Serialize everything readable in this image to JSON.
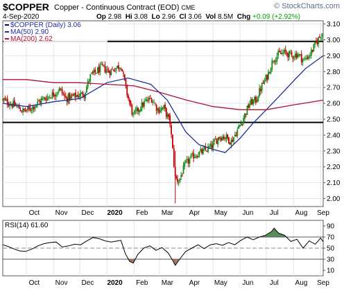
{
  "header": {
    "symbol": "$COPPER",
    "name": "Copper - Continuous Contract (EOD)",
    "exchange": "CME",
    "date": "4-Sep-2020",
    "open_label": "Op",
    "open": "2.98",
    "high_label": "Hi",
    "high": "3.08",
    "low_label": "Lo",
    "low": "2.96",
    "close_label": "Cl",
    "close": "3.06",
    "volume_label": "Vol",
    "volume": "8.5M",
    "change_label": "Chg",
    "change": "+0.09 (+2.92%)",
    "watermark": "© StockCharts.com",
    "change_color": "#00a000"
  },
  "chart_data": [
    {
      "type": "line",
      "title": "$COPPER (Daily) 3.06",
      "legend": [
        {
          "label": "$COPPER (Daily) 3.06",
          "color": "#000080"
        },
        {
          "label": "MA(50) 2.90",
          "color": "#1f2f9a"
        },
        {
          "label": "MA(200) 2.62",
          "color": "#b01030"
        }
      ],
      "legend_placement": "top-left",
      "price_axis": {
        "side": "right",
        "ylim": [
          1.95,
          3.12
        ],
        "ticks": [
          "3.10",
          "3.00",
          "2.90",
          "2.80",
          "2.70",
          "2.60",
          "2.50",
          "2.40",
          "2.30",
          "2.20",
          "2.10",
          "2.00"
        ]
      },
      "grid": true,
      "x_tick_labels": [
        "Oct",
        "Nov",
        "Dec",
        "2020",
        "Feb",
        "Mar",
        "Apr",
        "May",
        "Jun",
        "Jul",
        "Aug",
        "Sep"
      ],
      "horizontal_lines": [
        2.99,
        2.48
      ],
      "series": [
        {
          "name": "$COPPER (Daily) 3.06",
          "style": "candles",
          "up_color": "#1a8a1a",
          "down_color": "#c00000",
          "close_points": [
            [
              "2019-09-04",
              2.62
            ],
            [
              "2019-09-12",
              2.6
            ],
            [
              "2019-09-20",
              2.58
            ],
            [
              "2019-09-27",
              2.55
            ],
            [
              "2019-10-04",
              2.56
            ],
            [
              "2019-10-11",
              2.59
            ],
            [
              "2019-10-18",
              2.62
            ],
            [
              "2019-10-25",
              2.64
            ],
            [
              "2019-11-01",
              2.66
            ],
            [
              "2019-11-08",
              2.69
            ],
            [
              "2019-11-15",
              2.63
            ],
            [
              "2019-11-22",
              2.64
            ],
            [
              "2019-11-29",
              2.65
            ],
            [
              "2019-12-06",
              2.66
            ],
            [
              "2019-12-13",
              2.77
            ],
            [
              "2019-12-20",
              2.8
            ],
            [
              "2019-12-27",
              2.83
            ],
            [
              "2020-01-03",
              2.8
            ],
            [
              "2020-01-10",
              2.82
            ],
            [
              "2020-01-17",
              2.84
            ],
            [
              "2020-01-24",
              2.66
            ],
            [
              "2020-01-31",
              2.52
            ],
            [
              "2020-02-07",
              2.57
            ],
            [
              "2020-02-14",
              2.61
            ],
            [
              "2020-02-21",
              2.63
            ],
            [
              "2020-02-28",
              2.56
            ],
            [
              "2020-03-06",
              2.57
            ],
            [
              "2020-03-13",
              2.48
            ],
            [
              "2020-03-19",
              2.13
            ],
            [
              "2020-03-23",
              2.11
            ],
            [
              "2020-03-31",
              2.22
            ],
            [
              "2020-04-09",
              2.27
            ],
            [
              "2020-04-17",
              2.29
            ],
            [
              "2020-04-24",
              2.31
            ],
            [
              "2020-04-30",
              2.33
            ],
            [
              "2020-05-08",
              2.39
            ],
            [
              "2020-05-15",
              2.39
            ],
            [
              "2020-05-22",
              2.36
            ],
            [
              "2020-05-29",
              2.43
            ],
            [
              "2020-06-05",
              2.51
            ],
            [
              "2020-06-12",
              2.6
            ],
            [
              "2020-06-19",
              2.62
            ],
            [
              "2020-06-26",
              2.71
            ],
            [
              "2020-07-02",
              2.77
            ],
            [
              "2020-07-09",
              2.88
            ],
            [
              "2020-07-16",
              2.91
            ],
            [
              "2020-07-23",
              2.92
            ],
            [
              "2020-07-30",
              2.9
            ],
            [
              "2020-08-06",
              2.91
            ],
            [
              "2020-08-13",
              2.87
            ],
            [
              "2020-08-20",
              2.91
            ],
            [
              "2020-08-27",
              2.98
            ],
            [
              "2020-09-04",
              3.06
            ]
          ]
        },
        {
          "name": "MA(50) 2.90",
          "style": "line",
          "color": "#1f2f9a",
          "points": [
            [
              "2019-09-04",
              2.6
            ],
            [
              "2019-10-01",
              2.58
            ],
            [
              "2019-11-01",
              2.61
            ],
            [
              "2019-12-01",
              2.63
            ],
            [
              "2020-01-01",
              2.73
            ],
            [
              "2020-01-25",
              2.76
            ],
            [
              "2020-02-20",
              2.72
            ],
            [
              "2020-03-10",
              2.62
            ],
            [
              "2020-03-31",
              2.42
            ],
            [
              "2020-04-15",
              2.34
            ],
            [
              "2020-05-01",
              2.31
            ],
            [
              "2020-05-15",
              2.29
            ],
            [
              "2020-06-01",
              2.38
            ],
            [
              "2020-06-15",
              2.47
            ],
            [
              "2020-07-01",
              2.56
            ],
            [
              "2020-07-15",
              2.64
            ],
            [
              "2020-08-01",
              2.74
            ],
            [
              "2020-08-15",
              2.82
            ],
            [
              "2020-09-04",
              2.9
            ]
          ]
        },
        {
          "name": "MA(200) 2.62",
          "style": "line",
          "color": "#b01030",
          "points": [
            [
              "2019-09-04",
              2.75
            ],
            [
              "2019-10-01",
              2.75
            ],
            [
              "2019-11-01",
              2.73
            ],
            [
              "2019-12-01",
              2.73
            ],
            [
              "2020-01-01",
              2.72
            ],
            [
              "2020-02-01",
              2.71
            ],
            [
              "2020-03-01",
              2.67
            ],
            [
              "2020-04-01",
              2.62
            ],
            [
              "2020-05-01",
              2.58
            ],
            [
              "2020-06-01",
              2.56
            ],
            [
              "2020-07-01",
              2.56
            ],
            [
              "2020-08-01",
              2.59
            ],
            [
              "2020-09-04",
              2.62
            ]
          ]
        }
      ]
    },
    {
      "type": "line",
      "title": "RSI(14) 61.60",
      "legend": [
        {
          "label": "RSI(14) 61.60",
          "color": "#000000"
        }
      ],
      "ylim": [
        0,
        100
      ],
      "ticks": [
        "90",
        "70",
        "50",
        "30",
        "10"
      ],
      "reference_lines": [
        70,
        50,
        30
      ],
      "overbought_fill_color": "#3c7a3c",
      "oversold_fill_color": "#a05a50",
      "x_tick_labels": [
        "Oct",
        "Nov",
        "Dec",
        "2020",
        "Feb",
        "Mar",
        "Apr",
        "May",
        "Jun",
        "Jul",
        "Aug",
        "Sep"
      ],
      "series": [
        {
          "name": "RSI(14) 61.60",
          "points": [
            [
              "2019-09-04",
              56
            ],
            [
              "2019-09-10",
              53
            ],
            [
              "2019-09-16",
              49
            ],
            [
              "2019-09-23",
              45
            ],
            [
              "2019-09-30",
              44
            ],
            [
              "2019-10-07",
              48
            ],
            [
              "2019-10-14",
              54
            ],
            [
              "2019-10-21",
              58
            ],
            [
              "2019-10-28",
              60
            ],
            [
              "2019-11-04",
              61
            ],
            [
              "2019-11-11",
              52
            ],
            [
              "2019-11-18",
              54
            ],
            [
              "2019-11-25",
              57
            ],
            [
              "2019-12-02",
              56
            ],
            [
              "2019-12-09",
              63
            ],
            [
              "2019-12-16",
              69
            ],
            [
              "2019-12-23",
              67
            ],
            [
              "2019-12-30",
              63
            ],
            [
              "2020-01-06",
              61
            ],
            [
              "2020-01-13",
              63
            ],
            [
              "2020-01-17",
              64
            ],
            [
              "2020-01-22",
              40
            ],
            [
              "2020-01-27",
              26
            ],
            [
              "2020-01-31",
              23
            ],
            [
              "2020-02-05",
              38
            ],
            [
              "2020-02-12",
              50
            ],
            [
              "2020-02-19",
              54
            ],
            [
              "2020-02-26",
              46
            ],
            [
              "2020-03-04",
              51
            ],
            [
              "2020-03-11",
              41
            ],
            [
              "2020-03-16",
              28
            ],
            [
              "2020-03-19",
              19
            ],
            [
              "2020-03-24",
              30
            ],
            [
              "2020-03-31",
              44
            ],
            [
              "2020-04-07",
              50
            ],
            [
              "2020-04-14",
              56
            ],
            [
              "2020-04-21",
              49
            ],
            [
              "2020-04-28",
              56
            ],
            [
              "2020-05-05",
              58
            ],
            [
              "2020-05-12",
              55
            ],
            [
              "2020-05-19",
              60
            ],
            [
              "2020-05-26",
              56
            ],
            [
              "2020-06-02",
              64
            ],
            [
              "2020-06-09",
              70
            ],
            [
              "2020-06-16",
              65
            ],
            [
              "2020-06-23",
              70
            ],
            [
              "2020-06-30",
              73
            ],
            [
              "2020-07-07",
              80
            ],
            [
              "2020-07-10",
              86
            ],
            [
              "2020-07-15",
              77
            ],
            [
              "2020-07-22",
              73
            ],
            [
              "2020-07-29",
              62
            ],
            [
              "2020-08-05",
              66
            ],
            [
              "2020-08-12",
              50
            ],
            [
              "2020-08-19",
              63
            ],
            [
              "2020-08-26",
              57
            ],
            [
              "2020-09-01",
              68
            ],
            [
              "2020-09-04",
              61.6
            ]
          ]
        }
      ]
    }
  ]
}
